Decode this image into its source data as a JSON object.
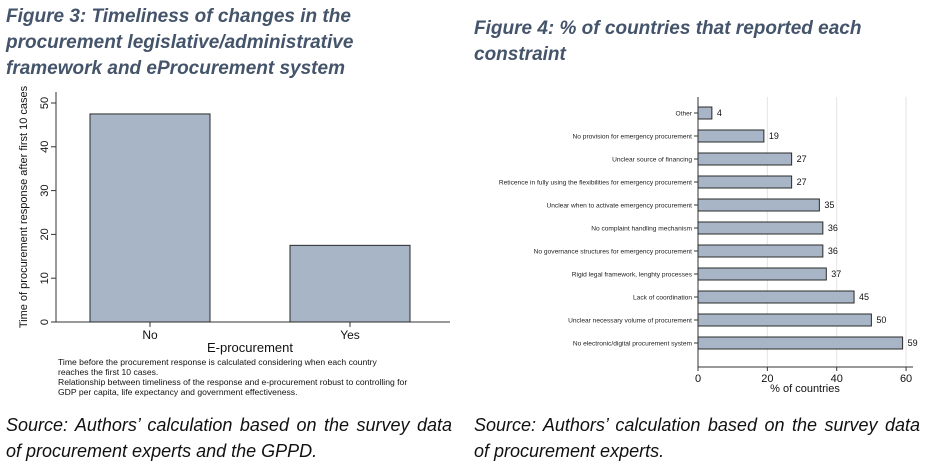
{
  "figure3": {
    "title": "Figure 3: Timeliness of changes in the procurement legislative/administrative framework and eProcurement system",
    "source": "Source: Authors’ calculation based on the survey data of procurement experts and the GPPD.",
    "notes": [
      "Time before the procurement response is calculated considering when each country",
      "reaches the first 10 cases.",
      "Relationship between timeliness of the response and e-procurement robust to controlling for",
      "GDP per capita, life expectancy and government effectiveness."
    ]
  },
  "figure4": {
    "title": "Figure 4: % of countries that reported each constraint",
    "source": "Source: Authors’ calculation based on the survey data of procurement experts."
  },
  "colors": {
    "bar_fill": "#a7b5c6",
    "bar_stroke": "#2a2a2a",
    "title": "#44546a"
  },
  "chart_data": [
    {
      "type": "bar",
      "orientation": "vertical",
      "categories": [
        "No",
        "Yes"
      ],
      "values": [
        47.5,
        17.5
      ],
      "xlabel": "E-procurement",
      "ylabel": "Time of procurement response after first 10 cases",
      "ylim": [
        0,
        50
      ],
      "yticks": [
        0,
        10,
        20,
        30,
        40,
        50
      ],
      "grid": false
    },
    {
      "type": "bar",
      "orientation": "horizontal",
      "categories": [
        "Other",
        "No provision for emergency procurement",
        "Unclear source of financing",
        "Reticence in fully using the flexibilities for emergency procurement",
        "Unclear when to activate emergency procurement",
        "No complaint handling mechanism",
        "No governance structures for emergency procurement",
        "Rigid legal framework, lenghty processes",
        "Lack of coordination",
        "Unclear necessary volume of procurement",
        "No electronic/digital procurement system"
      ],
      "values": [
        4,
        19,
        27,
        27,
        35,
        36,
        36,
        37,
        45,
        50,
        59
      ],
      "data_labels": [
        "4",
        "19",
        "27",
        "27",
        "35",
        "36",
        "36",
        "37",
        "45",
        "50",
        "59"
      ],
      "xlabel": "% of countries",
      "xlim": [
        0,
        62
      ],
      "xticks": [
        0,
        20,
        40,
        60
      ],
      "grid": true
    }
  ]
}
